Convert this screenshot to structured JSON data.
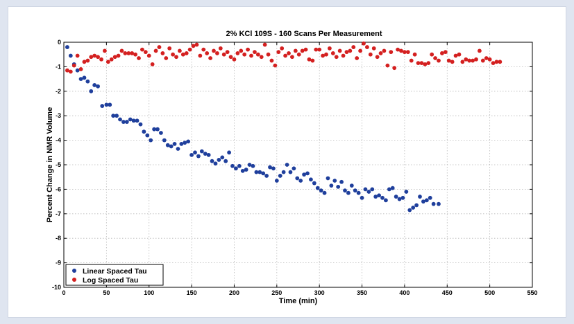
{
  "chart_data": {
    "type": "scatter",
    "title": "2% KCl 109S - 160 Scans Per Measurement",
    "xlabel": "Time (min)",
    "ylabel": "Percent Change in NMR Volume",
    "xlim": [
      0,
      550
    ],
    "ylim": [
      -10,
      0
    ],
    "xticks": [
      0,
      50,
      100,
      150,
      200,
      250,
      300,
      350,
      400,
      450,
      500,
      550
    ],
    "yticks": [
      0,
      -1,
      -2,
      -3,
      -4,
      -5,
      -6,
      -7,
      -8,
      -9,
      -10
    ],
    "xtick_labels": [
      "0",
      "50",
      "100",
      "150",
      "200",
      "250",
      "300",
      "350",
      "400",
      "450",
      "500",
      "550"
    ],
    "ytick_labels": [
      "0",
      "-1",
      "-2",
      "-3",
      "-4",
      "-5",
      "-6",
      "-7",
      "-8",
      "-9",
      "-10"
    ],
    "grid": true,
    "legend_position": "bottom-left",
    "series": [
      {
        "name": "Linear Spaced Tau",
        "color": "#1f3f9c",
        "points": [
          [
            4,
            -0.2
          ],
          [
            8,
            -0.55
          ],
          [
            12,
            -0.9
          ],
          [
            16,
            -1.15
          ],
          [
            20,
            -1.5
          ],
          [
            24,
            -1.45
          ],
          [
            28,
            -1.6
          ],
          [
            32,
            -2.0
          ],
          [
            36,
            -1.75
          ],
          [
            40,
            -1.8
          ],
          [
            45,
            -2.6
          ],
          [
            50,
            -2.55
          ],
          [
            54,
            -2.55
          ],
          [
            58,
            -3.0
          ],
          [
            62,
            -3.0
          ],
          [
            66,
            -3.15
          ],
          [
            70,
            -3.25
          ],
          [
            74,
            -3.25
          ],
          [
            78,
            -3.15
          ],
          [
            82,
            -3.2
          ],
          [
            86,
            -3.2
          ],
          [
            90,
            -3.35
          ],
          [
            94,
            -3.65
          ],
          [
            98,
            -3.8
          ],
          [
            102,
            -4.0
          ],
          [
            106,
            -3.55
          ],
          [
            110,
            -3.55
          ],
          [
            114,
            -3.7
          ],
          [
            118,
            -4.0
          ],
          [
            122,
            -4.2
          ],
          [
            126,
            -4.25
          ],
          [
            130,
            -4.15
          ],
          [
            134,
            -4.35
          ],
          [
            138,
            -4.15
          ],
          [
            142,
            -4.1
          ],
          [
            146,
            -4.05
          ],
          [
            150,
            -4.6
          ],
          [
            154,
            -4.5
          ],
          [
            158,
            -4.65
          ],
          [
            162,
            -4.45
          ],
          [
            166,
            -4.55
          ],
          [
            170,
            -4.6
          ],
          [
            174,
            -4.85
          ],
          [
            178,
            -4.95
          ],
          [
            182,
            -4.8
          ],
          [
            186,
            -4.7
          ],
          [
            190,
            -4.85
          ],
          [
            194,
            -4.5
          ],
          [
            198,
            -5.05
          ],
          [
            202,
            -5.15
          ],
          [
            206,
            -5.05
          ],
          [
            210,
            -5.25
          ],
          [
            214,
            -5.2
          ],
          [
            218,
            -5.0
          ],
          [
            222,
            -5.05
          ],
          [
            226,
            -5.3
          ],
          [
            230,
            -5.3
          ],
          [
            234,
            -5.35
          ],
          [
            238,
            -5.45
          ],
          [
            242,
            -5.1
          ],
          [
            246,
            -5.15
          ],
          [
            250,
            -5.65
          ],
          [
            254,
            -5.45
          ],
          [
            258,
            -5.3
          ],
          [
            262,
            -5.0
          ],
          [
            266,
            -5.3
          ],
          [
            270,
            -5.15
          ],
          [
            274,
            -5.55
          ],
          [
            278,
            -5.65
          ],
          [
            282,
            -5.4
          ],
          [
            286,
            -5.35
          ],
          [
            290,
            -5.6
          ],
          [
            294,
            -5.75
          ],
          [
            298,
            -5.95
          ],
          [
            302,
            -6.05
          ],
          [
            306,
            -6.15
          ],
          [
            310,
            -5.55
          ],
          [
            314,
            -5.85
          ],
          [
            318,
            -5.65
          ],
          [
            322,
            -5.9
          ],
          [
            326,
            -5.7
          ],
          [
            330,
            -6.05
          ],
          [
            334,
            -6.15
          ],
          [
            338,
            -5.85
          ],
          [
            342,
            -6.05
          ],
          [
            346,
            -6.15
          ],
          [
            350,
            -6.35
          ],
          [
            354,
            -6.0
          ],
          [
            358,
            -6.1
          ],
          [
            362,
            -6.0
          ],
          [
            366,
            -6.3
          ],
          [
            370,
            -6.25
          ],
          [
            374,
            -6.35
          ],
          [
            378,
            -6.45
          ],
          [
            382,
            -6.0
          ],
          [
            386,
            -5.95
          ],
          [
            390,
            -6.3
          ],
          [
            394,
            -6.4
          ],
          [
            398,
            -6.35
          ],
          [
            402,
            -6.1
          ],
          [
            406,
            -6.85
          ],
          [
            410,
            -6.75
          ],
          [
            414,
            -6.65
          ],
          [
            418,
            -6.3
          ],
          [
            422,
            -6.5
          ],
          [
            426,
            -6.45
          ],
          [
            430,
            -6.35
          ],
          [
            434,
            -6.6
          ],
          [
            440,
            -6.6
          ]
        ]
      },
      {
        "name": "Log Spaced Tau",
        "color": "#d42020",
        "points": [
          [
            4,
            -1.15
          ],
          [
            8,
            -1.2
          ],
          [
            12,
            -0.95
          ],
          [
            16,
            -0.55
          ],
          [
            20,
            -1.1
          ],
          [
            24,
            -0.8
          ],
          [
            28,
            -0.75
          ],
          [
            32,
            -0.6
          ],
          [
            36,
            -0.55
          ],
          [
            40,
            -0.6
          ],
          [
            44,
            -0.7
          ],
          [
            48,
            -0.35
          ],
          [
            52,
            -0.8
          ],
          [
            56,
            -0.7
          ],
          [
            60,
            -0.6
          ],
          [
            64,
            -0.55
          ],
          [
            68,
            -0.35
          ],
          [
            72,
            -0.45
          ],
          [
            76,
            -0.45
          ],
          [
            80,
            -0.45
          ],
          [
            84,
            -0.5
          ],
          [
            88,
            -0.65
          ],
          [
            92,
            -0.3
          ],
          [
            96,
            -0.4
          ],
          [
            100,
            -0.55
          ],
          [
            104,
            -0.9
          ],
          [
            108,
            -0.35
          ],
          [
            112,
            -0.2
          ],
          [
            116,
            -0.45
          ],
          [
            120,
            -0.65
          ],
          [
            124,
            -0.25
          ],
          [
            128,
            -0.5
          ],
          [
            132,
            -0.6
          ],
          [
            136,
            -0.35
          ],
          [
            140,
            -0.5
          ],
          [
            144,
            -0.45
          ],
          [
            148,
            -0.3
          ],
          [
            152,
            -0.15
          ],
          [
            156,
            -0.1
          ],
          [
            160,
            -0.55
          ],
          [
            164,
            -0.3
          ],
          [
            168,
            -0.45
          ],
          [
            172,
            -0.65
          ],
          [
            176,
            -0.35
          ],
          [
            180,
            -0.45
          ],
          [
            184,
            -0.25
          ],
          [
            188,
            -0.5
          ],
          [
            192,
            -0.4
          ],
          [
            196,
            -0.6
          ],
          [
            200,
            -0.7
          ],
          [
            204,
            -0.45
          ],
          [
            208,
            -0.35
          ],
          [
            212,
            -0.5
          ],
          [
            216,
            -0.3
          ],
          [
            220,
            -0.55
          ],
          [
            224,
            -0.4
          ],
          [
            228,
            -0.5
          ],
          [
            232,
            -0.6
          ],
          [
            236,
            -0.1
          ],
          [
            240,
            -0.5
          ],
          [
            244,
            -0.75
          ],
          [
            248,
            -0.95
          ],
          [
            252,
            -0.4
          ],
          [
            256,
            -0.25
          ],
          [
            260,
            -0.55
          ],
          [
            264,
            -0.45
          ],
          [
            268,
            -0.6
          ],
          [
            272,
            -0.35
          ],
          [
            276,
            -0.5
          ],
          [
            280,
            -0.35
          ],
          [
            284,
            -0.3
          ],
          [
            288,
            -0.7
          ],
          [
            292,
            -0.75
          ],
          [
            296,
            -0.3
          ],
          [
            300,
            -0.3
          ],
          [
            304,
            -0.55
          ],
          [
            308,
            -0.5
          ],
          [
            312,
            -0.25
          ],
          [
            316,
            -0.45
          ],
          [
            320,
            -0.6
          ],
          [
            324,
            -0.35
          ],
          [
            328,
            -0.55
          ],
          [
            332,
            -0.4
          ],
          [
            336,
            -0.35
          ],
          [
            340,
            -0.2
          ],
          [
            344,
            -0.65
          ],
          [
            348,
            -0.35
          ],
          [
            352,
            -0.05
          ],
          [
            356,
            -0.2
          ],
          [
            360,
            -0.5
          ],
          [
            364,
            -0.25
          ],
          [
            368,
            -0.6
          ],
          [
            372,
            -0.45
          ],
          [
            376,
            -0.35
          ],
          [
            380,
            -0.95
          ],
          [
            384,
            -0.4
          ],
          [
            388,
            -1.05
          ],
          [
            392,
            -0.3
          ],
          [
            396,
            -0.35
          ],
          [
            400,
            -0.4
          ],
          [
            404,
            -0.4
          ],
          [
            408,
            -0.75
          ],
          [
            412,
            -0.5
          ],
          [
            416,
            -0.85
          ],
          [
            420,
            -0.85
          ],
          [
            424,
            -0.9
          ],
          [
            428,
            -0.85
          ],
          [
            432,
            -0.5
          ],
          [
            436,
            -0.65
          ],
          [
            440,
            -0.75
          ],
          [
            444,
            -0.45
          ],
          [
            448,
            -0.4
          ],
          [
            452,
            -0.75
          ],
          [
            456,
            -0.8
          ],
          [
            460,
            -0.55
          ],
          [
            464,
            -0.5
          ],
          [
            468,
            -0.8
          ],
          [
            472,
            -0.7
          ],
          [
            476,
            -0.75
          ],
          [
            480,
            -0.75
          ],
          [
            484,
            -0.7
          ],
          [
            488,
            -0.35
          ],
          [
            492,
            -0.75
          ],
          [
            496,
            -0.65
          ],
          [
            500,
            -0.7
          ],
          [
            504,
            -0.85
          ],
          [
            508,
            -0.8
          ],
          [
            512,
            -0.8
          ]
        ]
      }
    ]
  }
}
